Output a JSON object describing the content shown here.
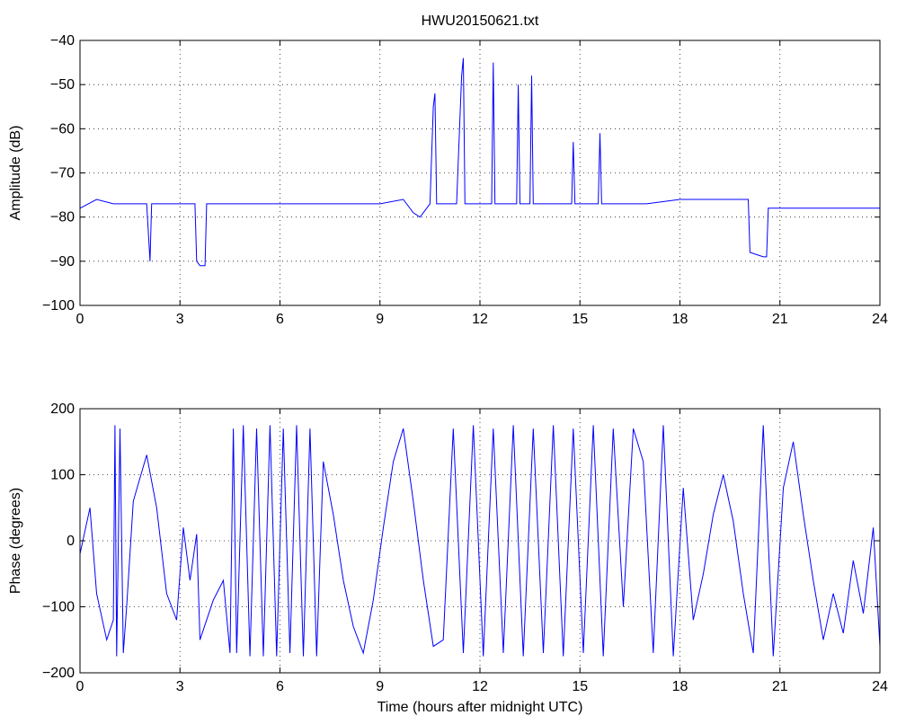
{
  "chart_data": [
    {
      "type": "line",
      "title": "HWU20150621.txt",
      "xlabel": "",
      "ylabel": "Amplitude (dB)",
      "xlim": [
        0,
        24
      ],
      "ylim": [
        -100,
        -40
      ],
      "xticks": [
        0,
        3,
        6,
        9,
        12,
        15,
        18,
        21,
        24
      ],
      "yticks": [
        -100,
        -90,
        -80,
        -70,
        -60,
        -50,
        -40
      ],
      "xtick_labels": [
        "0",
        "3",
        "6",
        "9",
        "12",
        "15",
        "18",
        "21",
        "24"
      ],
      "ytick_labels": [
        "−100",
        "−90",
        "−80",
        "−70",
        "−60",
        "−50",
        "−40"
      ],
      "grid": true,
      "color": "#0000ff",
      "series": [
        {
          "x": [
            0,
            0.5,
            1,
            1.5,
            2,
            2.1,
            2.15,
            2.2,
            3,
            3.45,
            3.5,
            3.6,
            3.75,
            3.8,
            4,
            5,
            6,
            7,
            8,
            9,
            9.7,
            10.0,
            10.2,
            10.5,
            10.6,
            10.65,
            10.7,
            10.75,
            11,
            11.3,
            11.45,
            11.5,
            11.55,
            11.6,
            12,
            12.35,
            12.4,
            12.45,
            12.5,
            13,
            13.1,
            13.15,
            13.2,
            13.5,
            13.55,
            13.6,
            13.65,
            14,
            14.75,
            14.8,
            14.85,
            15,
            15.5,
            15.55,
            15.6,
            15.65,
            16,
            17,
            18,
            19,
            20,
            20.05,
            20.1,
            20.5,
            20.6,
            20.65,
            21,
            22,
            23,
            24
          ],
          "y": [
            -78,
            -76,
            -77,
            -77,
            -77,
            -90,
            -77,
            -77,
            -77,
            -77,
            -90,
            -91,
            -91,
            -77,
            -77,
            -77,
            -77,
            -77,
            -77,
            -77,
            -76,
            -79,
            -80,
            -77,
            -55,
            -52,
            -77,
            -77,
            -77,
            -77,
            -48,
            -44,
            -77,
            -77,
            -77,
            -77,
            -45,
            -77,
            -77,
            -77,
            -77,
            -50,
            -77,
            -77,
            -48,
            -77,
            -77,
            -77,
            -77,
            -63,
            -77,
            -77,
            -77,
            -77,
            -61,
            -77,
            -77,
            -77,
            -76,
            -76,
            -76,
            -76,
            -88,
            -89,
            -89,
            -78,
            -78,
            -78,
            -78,
            -78
          ]
        }
      ]
    },
    {
      "type": "line",
      "title": "",
      "xlabel": "Time (hours after midnight UTC)",
      "ylabel": "Phase (degrees)",
      "xlim": [
        0,
        24
      ],
      "ylim": [
        -200,
        200
      ],
      "xticks": [
        0,
        3,
        6,
        9,
        12,
        15,
        18,
        21,
        24
      ],
      "yticks": [
        -200,
        -100,
        0,
        100,
        200
      ],
      "xtick_labels": [
        "0",
        "3",
        "6",
        "9",
        "12",
        "15",
        "18",
        "21",
        "24"
      ],
      "ytick_labels": [
        "−200",
        "−100",
        "0",
        "100",
        "200"
      ],
      "grid": true,
      "color": "#0000ff",
      "series": [
        {
          "x": [
            0,
            0.3,
            0.5,
            0.8,
            1.0,
            1.05,
            1.1,
            1.2,
            1.3,
            1.4,
            1.6,
            2.0,
            2.3,
            2.6,
            2.9,
            3.1,
            3.3,
            3.5,
            3.6,
            3.8,
            4.0,
            4.3,
            4.5,
            4.6,
            4.7,
            4.9,
            5.1,
            5.3,
            5.5,
            5.7,
            5.9,
            6.1,
            6.3,
            6.5,
            6.7,
            6.9,
            7.1,
            7.3,
            7.6,
            7.9,
            8.2,
            8.5,
            8.8,
            9.1,
            9.4,
            9.7,
            10.0,
            10.3,
            10.6,
            10.9,
            11.2,
            11.5,
            11.8,
            12.1,
            12.4,
            12.7,
            13.0,
            13.3,
            13.6,
            13.9,
            14.2,
            14.5,
            14.8,
            15.1,
            15.4,
            15.7,
            16.0,
            16.3,
            16.6,
            16.9,
            17.2,
            17.5,
            17.8,
            18.1,
            18.4,
            18.7,
            19.0,
            19.3,
            19.6,
            19.9,
            20.2,
            20.5,
            20.8,
            21.1,
            21.4,
            21.7,
            22.0,
            22.3,
            22.6,
            22.9,
            23.2,
            23.5,
            23.8,
            24.0
          ],
          "y": [
            -20,
            50,
            -80,
            -150,
            -120,
            175,
            -175,
            170,
            -170,
            -100,
            60,
            130,
            50,
            -80,
            -120,
            20,
            -60,
            10,
            -150,
            -120,
            -90,
            -60,
            -170,
            170,
            -170,
            175,
            -175,
            170,
            -175,
            175,
            -175,
            170,
            -170,
            175,
            -175,
            170,
            -175,
            120,
            40,
            -60,
            -130,
            -170,
            -90,
            20,
            120,
            170,
            60,
            -60,
            -160,
            -150,
            170,
            -170,
            175,
            -175,
            170,
            -170,
            175,
            -175,
            170,
            -170,
            175,
            -175,
            170,
            -170,
            175,
            -175,
            170,
            -100,
            170,
            120,
            -170,
            175,
            -175,
            80,
            -120,
            -50,
            40,
            100,
            30,
            -80,
            -170,
            175,
            -175,
            80,
            150,
            40,
            -60,
            -150,
            -80,
            -140,
            -30,
            -110,
            20,
            -160
          ]
        }
      ]
    }
  ]
}
